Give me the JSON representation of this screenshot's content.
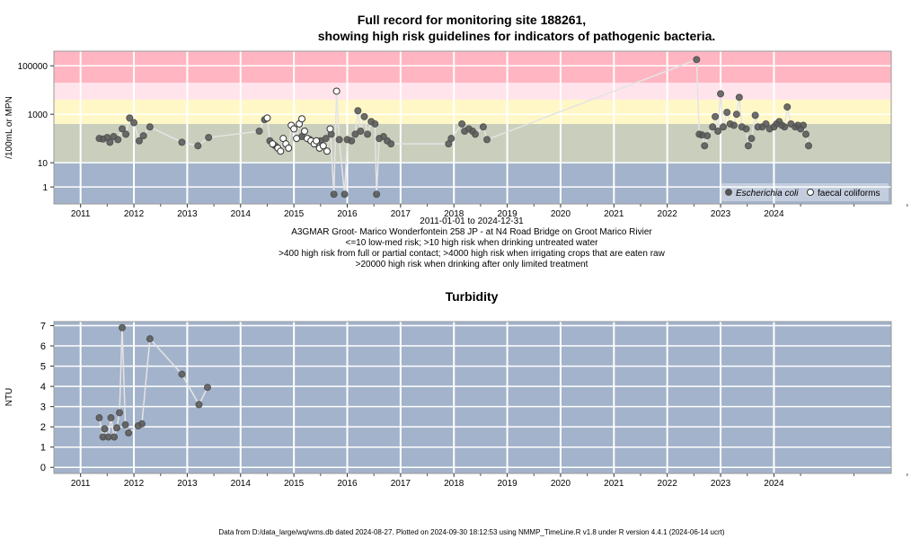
{
  "chart_data": [
    {
      "type": "scatter",
      "title_line1": "Full record for monitoring site 188261,",
      "title_line2": "showing high risk guidelines for indicators of pathogenic bacteria.",
      "ylabel": "/100mL or MPN",
      "yscale": "log",
      "ylim": [
        0.2,
        400000
      ],
      "xlim": [
        2010.5,
        2026.2
      ],
      "yticks": [
        1,
        10,
        1000,
        100000
      ],
      "ytick_labels": [
        "1",
        "10",
        "1000",
        "100000"
      ],
      "xticks": [
        2011,
        2012,
        2013,
        2014,
        2015,
        2016,
        2017,
        2018,
        2019,
        2020,
        2021,
        2022,
        2023,
        2024
      ],
      "date_range": "2011-01-01 to 2024-12-31",
      "site_label": "A3GMAR Groot- Marico Wonderfontein 258 JP - at N4 Road Bridge on Groot Marico Rivier",
      "guideline_notes": [
        "<=10 low-med risk; >10 high risk when drinking untreated water",
        ">400 high risk from full or partial contact; >4000 high risk when irrigating crops that are eaten raw",
        ">20000 high risk when drinking after only limited treatment"
      ],
      "bands": [
        {
          "from": 0.2,
          "to": 10,
          "color": "#a3b3cb"
        },
        {
          "from": 10,
          "to": 400,
          "color": "#c9cfbc"
        },
        {
          "from": 400,
          "to": 4000,
          "color": "#fff8c6"
        },
        {
          "from": 4000,
          "to": 20000,
          "color": "#ffe4ec"
        },
        {
          "from": 20000,
          "to": 400000,
          "color": "#ffb6c2"
        }
      ],
      "legend": {
        "position": "bottom-right",
        "ecoli_label": "Escherichia coli",
        "faecal_label": "faecal coliforms"
      },
      "series": [
        {
          "name": "Escherichia coli",
          "marker": "filled",
          "points": [
            [
              2011.35,
              100
            ],
            [
              2011.42,
              95
            ],
            [
              2011.5,
              110
            ],
            [
              2011.55,
              70
            ],
            [
              2011.62,
              120
            ],
            [
              2011.7,
              90
            ],
            [
              2011.78,
              250
            ],
            [
              2011.85,
              150
            ],
            [
              2011.92,
              700
            ],
            [
              2012.0,
              450
            ],
            [
              2012.1,
              80
            ],
            [
              2012.18,
              130
            ],
            [
              2012.3,
              300
            ],
            [
              2012.9,
              70
            ],
            [
              2013.2,
              50
            ],
            [
              2013.4,
              110
            ],
            [
              2014.35,
              200
            ],
            [
              2014.45,
              600
            ],
            [
              2014.55,
              80
            ],
            [
              2014.65,
              50
            ],
            [
              2015.15,
              120
            ],
            [
              2015.3,
              90
            ],
            [
              2015.5,
              80
            ],
            [
              2015.6,
              100
            ],
            [
              2015.7,
              150
            ],
            [
              2015.75,
              0.5
            ],
            [
              2015.85,
              90
            ],
            [
              2015.95,
              0.5
            ],
            [
              2016.0,
              90
            ],
            [
              2016.08,
              80
            ],
            [
              2016.15,
              150
            ],
            [
              2016.2,
              1400
            ],
            [
              2016.25,
              200
            ],
            [
              2016.32,
              800
            ],
            [
              2016.38,
              150
            ],
            [
              2016.45,
              500
            ],
            [
              2016.52,
              400
            ],
            [
              2016.55,
              0.5
            ],
            [
              2016.6,
              100
            ],
            [
              2016.68,
              120
            ],
            [
              2016.75,
              80
            ],
            [
              2016.82,
              60
            ],
            [
              2017.9,
              60
            ],
            [
              2017.95,
              100
            ],
            [
              2018.15,
              400
            ],
            [
              2018.2,
              200
            ],
            [
              2018.28,
              250
            ],
            [
              2018.35,
              200
            ],
            [
              2018.4,
              150
            ],
            [
              2018.55,
              300
            ],
            [
              2018.62,
              90
            ],
            [
              2022.55,
              180000
            ],
            [
              2022.6,
              150
            ],
            [
              2022.65,
              140
            ],
            [
              2022.7,
              50
            ],
            [
              2022.75,
              130
            ],
            [
              2022.85,
              300
            ],
            [
              2022.9,
              800
            ],
            [
              2022.95,
              200
            ],
            [
              2023.0,
              7000
            ],
            [
              2023.05,
              300
            ],
            [
              2023.12,
              1200
            ],
            [
              2023.18,
              400
            ],
            [
              2023.25,
              350
            ],
            [
              2023.3,
              1000
            ],
            [
              2023.35,
              5000
            ],
            [
              2023.4,
              300
            ],
            [
              2023.48,
              250
            ],
            [
              2023.52,
              50
            ],
            [
              2023.58,
              100
            ],
            [
              2023.65,
              900
            ],
            [
              2023.7,
              300
            ],
            [
              2023.78,
              300
            ],
            [
              2023.85,
              400
            ],
            [
              2023.92,
              250
            ],
            [
              2024.0,
              300
            ],
            [
              2024.05,
              400
            ],
            [
              2024.1,
              500
            ],
            [
              2024.15,
              350
            ],
            [
              2024.2,
              300
            ],
            [
              2024.25,
              2000
            ],
            [
              2024.32,
              400
            ],
            [
              2024.4,
              300
            ],
            [
              2024.45,
              350
            ],
            [
              2024.5,
              250
            ],
            [
              2024.55,
              350
            ],
            [
              2024.6,
              150
            ],
            [
              2024.65,
              50
            ]
          ]
        },
        {
          "name": "faecal coliforms",
          "marker": "open",
          "points": [
            [
              2014.5,
              700
            ],
            [
              2014.6,
              60
            ],
            [
              2014.7,
              40
            ],
            [
              2014.75,
              30
            ],
            [
              2014.8,
              100
            ],
            [
              2014.85,
              60
            ],
            [
              2014.9,
              40
            ],
            [
              2014.95,
              350
            ],
            [
              2015.0,
              250
            ],
            [
              2015.05,
              100
            ],
            [
              2015.1,
              400
            ],
            [
              2015.15,
              650
            ],
            [
              2015.2,
              200
            ],
            [
              2015.25,
              100
            ],
            [
              2015.32,
              80
            ],
            [
              2015.38,
              60
            ],
            [
              2015.42,
              80
            ],
            [
              2015.48,
              40
            ],
            [
              2015.55,
              50
            ],
            [
              2015.62,
              30
            ],
            [
              2015.68,
              250
            ],
            [
              2015.8,
              9000
            ]
          ]
        }
      ],
      "connecting_line": [
        [
          2011.35,
          100
        ],
        [
          2011.42,
          95
        ],
        [
          2011.5,
          110
        ],
        [
          2011.55,
          70
        ],
        [
          2011.62,
          120
        ],
        [
          2011.7,
          90
        ],
        [
          2011.78,
          250
        ],
        [
          2011.85,
          150
        ],
        [
          2011.92,
          700
        ],
        [
          2012.0,
          450
        ],
        [
          2012.1,
          80
        ],
        [
          2012.18,
          130
        ],
        [
          2012.3,
          300
        ],
        [
          2012.9,
          70
        ],
        [
          2013.2,
          50
        ],
        [
          2013.4,
          110
        ],
        [
          2014.35,
          200
        ],
        [
          2014.45,
          600
        ],
        [
          2014.5,
          700
        ],
        [
          2014.55,
          80
        ],
        [
          2014.6,
          60
        ],
        [
          2014.65,
          50
        ],
        [
          2014.7,
          40
        ],
        [
          2014.75,
          30
        ],
        [
          2014.8,
          100
        ],
        [
          2014.85,
          60
        ],
        [
          2014.9,
          40
        ],
        [
          2014.95,
          350
        ],
        [
          2015.0,
          250
        ],
        [
          2015.05,
          100
        ],
        [
          2015.1,
          400
        ],
        [
          2015.15,
          650
        ],
        [
          2015.2,
          200
        ],
        [
          2015.25,
          100
        ],
        [
          2015.32,
          80
        ],
        [
          2015.38,
          60
        ],
        [
          2015.42,
          80
        ],
        [
          2015.48,
          40
        ],
        [
          2015.55,
          50
        ],
        [
          2015.62,
          30
        ],
        [
          2015.68,
          250
        ],
        [
          2015.75,
          0.5
        ],
        [
          2015.8,
          9000
        ],
        [
          2015.85,
          90
        ],
        [
          2015.95,
          0.5
        ],
        [
          2016.0,
          90
        ],
        [
          2016.08,
          80
        ],
        [
          2016.15,
          150
        ],
        [
          2016.2,
          1400
        ],
        [
          2016.25,
          200
        ],
        [
          2016.32,
          800
        ],
        [
          2016.38,
          150
        ],
        [
          2016.45,
          500
        ],
        [
          2016.52,
          400
        ],
        [
          2016.55,
          0.5
        ],
        [
          2016.6,
          100
        ],
        [
          2016.68,
          120
        ],
        [
          2016.75,
          80
        ],
        [
          2016.82,
          60
        ],
        [
          2017.9,
          60
        ],
        [
          2017.95,
          100
        ],
        [
          2018.15,
          400
        ],
        [
          2018.2,
          200
        ],
        [
          2018.28,
          250
        ],
        [
          2018.35,
          200
        ],
        [
          2018.4,
          150
        ],
        [
          2018.55,
          300
        ],
        [
          2018.62,
          90
        ],
        [
          2022.55,
          180000
        ],
        [
          2022.6,
          150
        ],
        [
          2022.65,
          140
        ],
        [
          2022.7,
          50
        ],
        [
          2022.75,
          130
        ],
        [
          2022.85,
          300
        ],
        [
          2022.9,
          800
        ],
        [
          2022.95,
          200
        ],
        [
          2023.0,
          7000
        ],
        [
          2023.05,
          300
        ],
        [
          2023.12,
          1200
        ],
        [
          2023.18,
          400
        ],
        [
          2023.25,
          350
        ],
        [
          2023.3,
          1000
        ],
        [
          2023.35,
          5000
        ],
        [
          2023.4,
          300
        ],
        [
          2023.48,
          250
        ],
        [
          2023.52,
          50
        ],
        [
          2023.58,
          100
        ],
        [
          2023.65,
          900
        ],
        [
          2023.7,
          300
        ],
        [
          2023.78,
          300
        ],
        [
          2023.85,
          400
        ],
        [
          2023.92,
          250
        ],
        [
          2024.0,
          300
        ],
        [
          2024.05,
          400
        ],
        [
          2024.1,
          500
        ],
        [
          2024.15,
          350
        ],
        [
          2024.2,
          300
        ],
        [
          2024.25,
          2000
        ],
        [
          2024.32,
          400
        ],
        [
          2024.4,
          300
        ],
        [
          2024.45,
          350
        ],
        [
          2024.5,
          250
        ],
        [
          2024.55,
          350
        ],
        [
          2024.6,
          150
        ],
        [
          2024.65,
          50
        ]
      ]
    },
    {
      "type": "line",
      "title": "Turbidity",
      "ylabel": "NTU",
      "ylim": [
        -0.3,
        7.2
      ],
      "xlim": [
        2010.5,
        2026.2
      ],
      "yticks": [
        0,
        1,
        2,
        3,
        4,
        5,
        6,
        7
      ],
      "xticks": [
        2011,
        2012,
        2013,
        2014,
        2015,
        2016,
        2017,
        2018,
        2019,
        2020,
        2021,
        2022,
        2023,
        2024
      ],
      "background": "#a3b3cb",
      "series": [
        {
          "name": "",
          "points": [
            [
              2011.35,
              2.45
            ],
            [
              2011.42,
              1.5
            ],
            [
              2011.45,
              1.9
            ],
            [
              2011.52,
              1.5
            ],
            [
              2011.57,
              2.45
            ],
            [
              2011.63,
              1.5
            ],
            [
              2011.68,
              1.95
            ],
            [
              2011.73,
              2.7
            ],
            [
              2011.78,
              6.9
            ],
            [
              2011.84,
              2.1
            ],
            [
              2011.9,
              1.7
            ],
            [
              2012.08,
              2.05
            ],
            [
              2012.15,
              2.15
            ],
            [
              2012.3,
              6.35
            ],
            [
              2012.9,
              4.6
            ],
            [
              2013.22,
              3.1
            ],
            [
              2013.38,
              3.95
            ]
          ]
        }
      ]
    }
  ],
  "footer": "Data from D:/data_large/wq/wms.db dated 2024-08-27. Plotted on 2024-09-30 18:12:53 using NMMP_TimeLine.R v1.8 under R version 4.4.1 (2024-06-14 ucrt)"
}
